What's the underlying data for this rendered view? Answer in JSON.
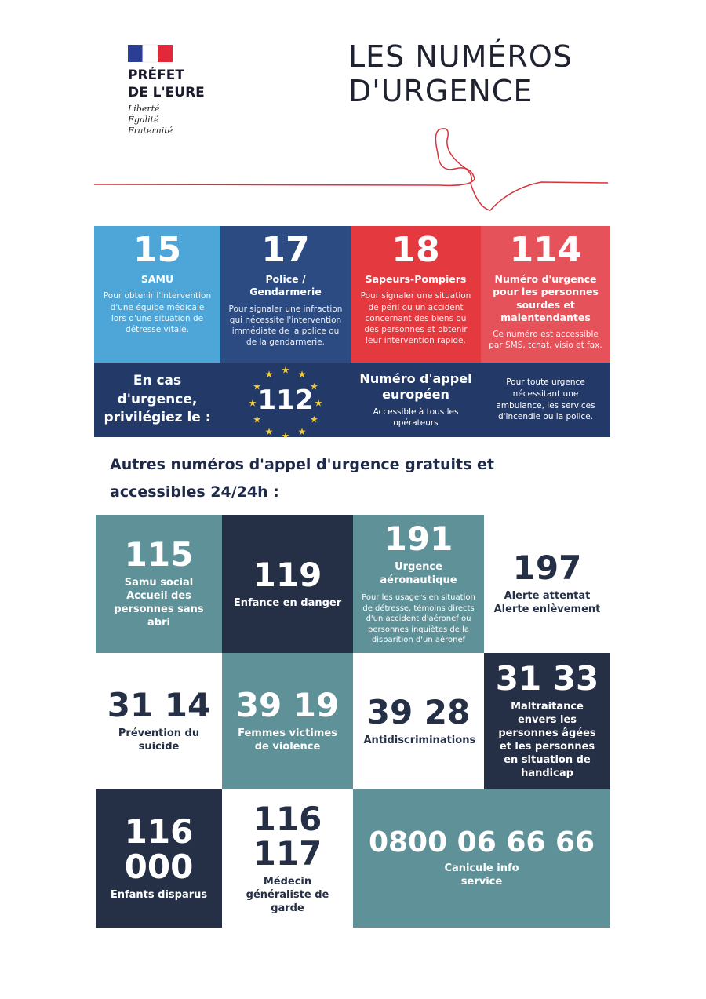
{
  "header": {
    "org": [
      "PRÉFET",
      "DE L'EURE"
    ],
    "motto": [
      "Liberté",
      "Égalité",
      "Fraternité"
    ],
    "title": [
      "LES NUMÉROS",
      "D'URGENCE"
    ]
  },
  "cards": [
    {
      "number": "15",
      "name": "SAMU",
      "description": "Pour obtenir l'intervention d'une équipe médicale lors d'une situation de détresse vitale."
    },
    {
      "number": "17",
      "name": "Police / Gendarmerie",
      "description": "Pour signaler une infraction qui nécessite l'intervention immédiate de la police ou de la gendarmerie."
    },
    {
      "number": "18",
      "name": "Sapeurs-Pompiers",
      "description": "Pour signaler une situation de péril ou un accident concernant des biens ou des personnes et obtenir leur intervention rapide."
    },
    {
      "number": "114",
      "name": "Numéro d'urgence pour les personnes sourdes et malentendantes",
      "description": "Ce numéro est accessible par SMS, tchat, visio et fax."
    }
  ],
  "european": {
    "intro": "En cas d'urgence, privilégiez le :",
    "number": "112",
    "name": "Numéro d'appel européen",
    "note": "Accessible à tous les opérateurs",
    "description": "Pour toute urgence nécessitant une ambulance, les services d'incendie ou la police."
  },
  "other_heading": "Autres numéros d'appel d'urgence gratuits et accessibles 24/24h :",
  "grid": [
    [
      {
        "number": "115",
        "label": "Samu social Accueil des personnes sans abri"
      },
      {
        "number": "119",
        "label": "Enfance en danger"
      },
      {
        "number": "191",
        "label": "Urgence aéronautique",
        "description": "Pour les usagers en situation de détresse, témoins directs d'un accident d'aéronef ou personnes inquiètes de la disparition d'un aéronef"
      },
      {
        "number": "197",
        "label": "Alerte attentat Alerte enlèvement"
      }
    ],
    [
      {
        "number": "31 14",
        "label": "Prévention du suicide"
      },
      {
        "number": "39 19",
        "label": "Femmes victimes de violence"
      },
      {
        "number": "39 28",
        "label": "Antidiscriminations"
      },
      {
        "number": "31 33",
        "label": "Maltraitance envers les personnes âgées et les personnes en situation de handicap"
      }
    ],
    [
      {
        "number": "116 000",
        "label": "Enfants disparus"
      },
      {
        "number": "116 117",
        "label": "Médecin généraliste de garde"
      },
      {
        "number": "0800 06 66 66",
        "label": "Canicule info service"
      }
    ]
  ]
}
